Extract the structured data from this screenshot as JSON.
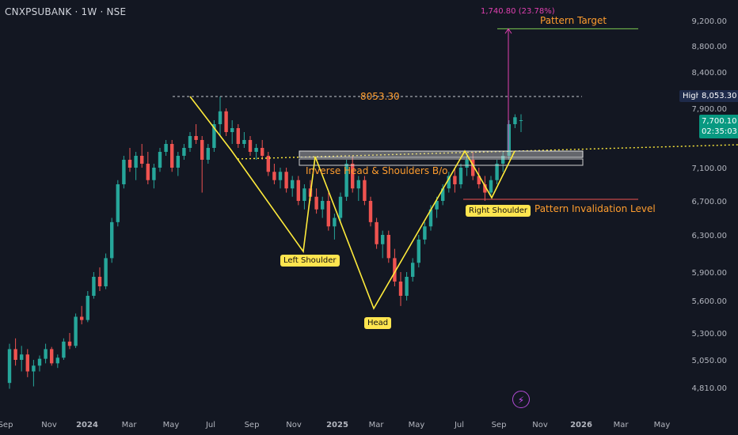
{
  "header": {
    "symbol_label": "CNXPSUBANK · 1W · NSE"
  },
  "chart_data": {
    "type": "candlestick",
    "y_ticks": [
      "9,200.00",
      "8,800.00",
      "8,400.00",
      "7,900.00",
      "7,100.00",
      "6,700.00",
      "6,300.00",
      "5,900.00",
      "5,600.00",
      "5,300.00",
      "5,050.00",
      "4,810.00"
    ],
    "y_tick_values": [
      9200,
      8800,
      8400,
      7900,
      7100,
      6700,
      6300,
      5900,
      5600,
      5300,
      5050,
      4810
    ],
    "x_ticks": [
      "Sep",
      "Nov",
      "2024",
      "Mar",
      "May",
      "Jul",
      "Sep",
      "Nov",
      "2025",
      "Mar",
      "May",
      "Jul",
      "Sep",
      "Nov",
      "2026",
      "Mar",
      "May"
    ],
    "x_tick_bold": [
      false,
      false,
      true,
      false,
      false,
      false,
      false,
      false,
      true,
      false,
      false,
      false,
      false,
      false,
      true,
      false,
      false
    ],
    "high_value": "8,053.30",
    "high_label": "High",
    "current_price": "7,700.10",
    "countdown": "02:35:03",
    "colors": {
      "up": "#26a69a",
      "down": "#ef5350",
      "pattern": "#ffeb3b",
      "annot": "#ff9d2e",
      "target": "#e040b0",
      "background": "#131722"
    },
    "candles": [
      [
        4850,
        5200,
        4800,
        5150
      ],
      [
        5150,
        5250,
        5000,
        5050
      ],
      [
        5050,
        5180,
        4950,
        5100
      ],
      [
        5100,
        5150,
        4900,
        4950
      ],
      [
        4950,
        5050,
        4820,
        5000
      ],
      [
        5000,
        5090,
        4950,
        5060
      ],
      [
        5060,
        5200,
        5020,
        5150
      ],
      [
        5150,
        5170,
        5000,
        5020
      ],
      [
        5020,
        5100,
        4980,
        5070
      ],
      [
        5070,
        5250,
        5050,
        5220
      ],
      [
        5220,
        5300,
        5150,
        5180
      ],
      [
        5180,
        5480,
        5160,
        5450
      ],
      [
        5450,
        5550,
        5380,
        5420
      ],
      [
        5420,
        5700,
        5400,
        5650
      ],
      [
        5650,
        5900,
        5620,
        5850
      ],
      [
        5850,
        5950,
        5700,
        5750
      ],
      [
        5750,
        6100,
        5720,
        6050
      ],
      [
        6050,
        6500,
        6000,
        6450
      ],
      [
        6450,
        6950,
        6400,
        6900
      ],
      [
        6900,
        7250,
        6850,
        7200
      ],
      [
        7200,
        7350,
        7050,
        7100
      ],
      [
        7100,
        7300,
        6950,
        7250
      ],
      [
        7250,
        7400,
        7100,
        7150
      ],
      [
        7150,
        7300,
        6900,
        6950
      ],
      [
        6950,
        7150,
        6850,
        7100
      ],
      [
        7100,
        7350,
        7050,
        7300
      ],
      [
        7300,
        7450,
        7250,
        7400
      ],
      [
        7400,
        7450,
        7050,
        7100
      ],
      [
        7100,
        7300,
        7000,
        7250
      ],
      [
        7250,
        7400,
        7200,
        7350
      ],
      [
        7350,
        7550,
        7300,
        7500
      ],
      [
        7500,
        7650,
        7400,
        7450
      ],
      [
        7450,
        7500,
        6800,
        7200
      ],
      [
        7200,
        7400,
        7150,
        7350
      ],
      [
        7350,
        7700,
        7300,
        7650
      ],
      [
        7650,
        8053,
        7500,
        7850
      ],
      [
        7850,
        7900,
        7500,
        7550
      ],
      [
        7550,
        7700,
        7400,
        7600
      ],
      [
        7600,
        7650,
        7350,
        7400
      ],
      [
        7400,
        7550,
        7350,
        7450
      ],
      [
        7450,
        7500,
        7250,
        7300
      ],
      [
        7300,
        7400,
        7200,
        7350
      ],
      [
        7350,
        7450,
        7200,
        7250
      ],
      [
        7250,
        7300,
        7000,
        7050
      ],
      [
        7050,
        7150,
        6900,
        6950
      ],
      [
        6950,
        7100,
        6850,
        7050
      ],
      [
        7050,
        7100,
        6800,
        6850
      ],
      [
        6850,
        7000,
        6750,
        6950
      ],
      [
        6950,
        7000,
        6650,
        6700
      ],
      [
        6700,
        6900,
        6600,
        6850
      ],
      [
        6850,
        6950,
        6700,
        6750
      ],
      [
        6750,
        6850,
        6550,
        6600
      ],
      [
        6600,
        6750,
        6500,
        6700
      ],
      [
        6700,
        6800,
        6350,
        6400
      ],
      [
        6400,
        6550,
        6250,
        6500
      ],
      [
        6500,
        6800,
        6450,
        6750
      ],
      [
        6750,
        7200,
        6700,
        7150
      ],
      [
        7150,
        7250,
        6800,
        6850
      ],
      [
        6850,
        7000,
        6700,
        6950
      ],
      [
        6950,
        7000,
        6650,
        6700
      ],
      [
        6700,
        6750,
        6400,
        6450
      ],
      [
        6450,
        6500,
        6150,
        6200
      ],
      [
        6200,
        6350,
        6050,
        6300
      ],
      [
        6300,
        6350,
        6000,
        6050
      ],
      [
        6050,
        6150,
        5750,
        5800
      ],
      [
        5800,
        5900,
        5550,
        5650
      ],
      [
        5650,
        5900,
        5600,
        5850
      ],
      [
        5850,
        6050,
        5800,
        6000
      ],
      [
        6000,
        6300,
        5950,
        6250
      ],
      [
        6250,
        6450,
        6200,
        6400
      ],
      [
        6400,
        6650,
        6350,
        6600
      ],
      [
        6600,
        6750,
        6500,
        6700
      ],
      [
        6700,
        6900,
        6650,
        6850
      ],
      [
        6850,
        7050,
        6800,
        7000
      ],
      [
        7000,
        7100,
        6800,
        6900
      ],
      [
        6900,
        7150,
        6850,
        7100
      ],
      [
        7100,
        7250,
        7000,
        7200
      ],
      [
        7200,
        7300,
        6950,
        7000
      ],
      [
        7000,
        7100,
        6850,
        6900
      ],
      [
        6900,
        7000,
        6700,
        6800
      ],
      [
        6800,
        7000,
        6750,
        6950
      ],
      [
        6950,
        7200,
        6900,
        7150
      ],
      [
        7150,
        7300,
        7050,
        7250
      ],
      [
        7250,
        7700,
        7200,
        7650
      ],
      [
        7650,
        7800,
        7600,
        7750
      ],
      [
        7700,
        7800,
        7550,
        7700
      ]
    ]
  },
  "annotations": {
    "high_line_label": "8053.30",
    "neckline_label": "Inverse Head & Shoulders B/o",
    "left_shoulder": "Left Shoulder",
    "head": "Head",
    "right_shoulder": "Right Shoulder",
    "invalidation": "Pattern Invalidation Level",
    "target": "Pattern Target",
    "target_measure": "1,740.80 (23.78%)"
  },
  "icons": {
    "replay": "lightning-icon"
  }
}
